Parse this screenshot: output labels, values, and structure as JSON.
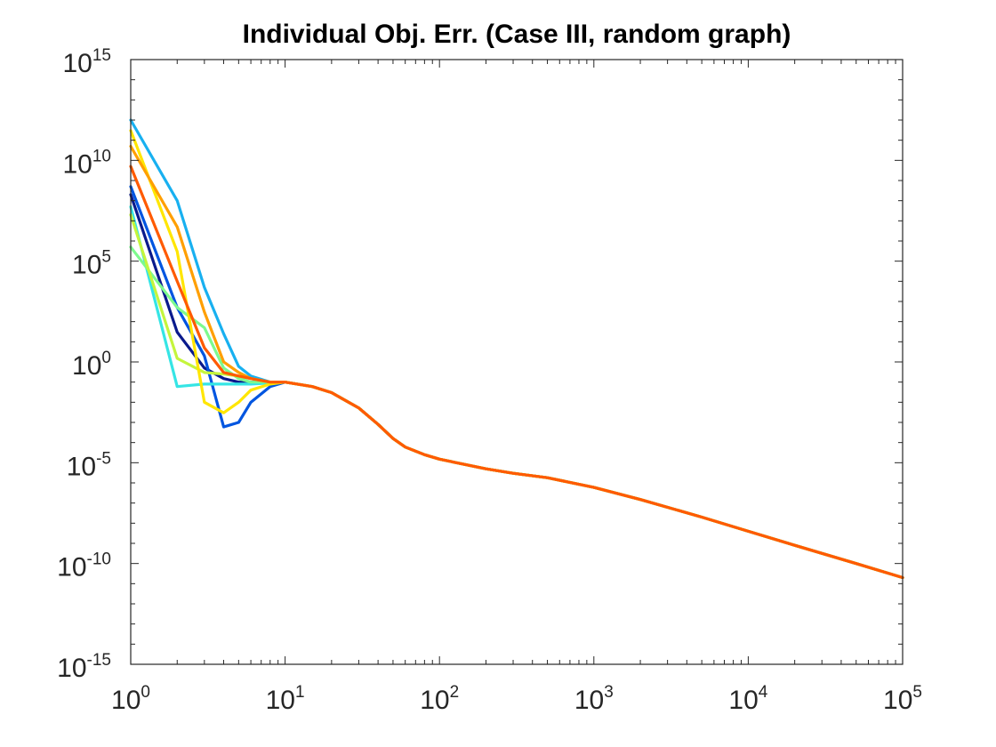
{
  "chart_data": {
    "type": "line",
    "title": "Individual Obj. Err. (Case III, random graph)",
    "xlabel": "",
    "ylabel": "",
    "xscale": "log",
    "yscale": "log",
    "xlim": [
      1,
      100000
    ],
    "ylim": [
      1e-15,
      1000000000000000.0
    ],
    "grid": false,
    "x_ticks": [
      {
        "base": "10",
        "exp": "0"
      },
      {
        "base": "10",
        "exp": "1"
      },
      {
        "base": "10",
        "exp": "2"
      },
      {
        "base": "10",
        "exp": "3"
      },
      {
        "base": "10",
        "exp": "4"
      },
      {
        "base": "10",
        "exp": "5"
      }
    ],
    "y_ticks": [
      {
        "base": "10",
        "exp": "-15"
      },
      {
        "base": "10",
        "exp": "-10"
      },
      {
        "base": "10",
        "exp": "-5"
      },
      {
        "base": "10",
        "exp": "0"
      },
      {
        "base": "10",
        "exp": "5"
      },
      {
        "base": "10",
        "exp": "10"
      },
      {
        "base": "10",
        "exp": "15"
      }
    ],
    "shared_tail": [
      [
        10,
        0.1
      ],
      [
        15,
        0.06
      ],
      [
        20,
        0.03
      ],
      [
        30,
        0.0052
      ],
      [
        40,
        0.0008
      ],
      [
        50,
        0.00016
      ],
      [
        60,
        6e-05
      ],
      [
        80,
        2.5e-05
      ],
      [
        100,
        1.5e-05
      ],
      [
        200,
        5e-06
      ],
      [
        300,
        3e-06
      ],
      [
        500,
        1.8e-06
      ],
      [
        1000,
        6e-07
      ],
      [
        2000,
        1.5e-07
      ],
      [
        5000,
        2e-08
      ],
      [
        10000,
        4e-09
      ],
      [
        20000,
        8e-10
      ],
      [
        50000,
        1e-10
      ],
      [
        100000,
        2e-11
      ]
    ],
    "series": [
      {
        "color": "#0a1a8c",
        "values": [
          [
            1,
            200000000.0
          ],
          [
            2,
            30
          ],
          [
            3,
            0.5
          ],
          [
            4,
            0.15
          ],
          [
            5,
            0.1
          ],
          [
            6,
            0.1
          ],
          [
            8,
            0.1
          ]
        ]
      },
      {
        "color": "#0055e0",
        "values": [
          [
            1,
            500000000.0
          ],
          [
            2,
            500
          ],
          [
            3,
            2
          ],
          [
            4,
            0.0006
          ],
          [
            5,
            0.001
          ],
          [
            6,
            0.01
          ],
          [
            8,
            0.06
          ]
        ]
      },
      {
        "color": "#18b0f0",
        "values": [
          [
            1,
            1000000000000.0
          ],
          [
            2,
            100000000.0
          ],
          [
            3,
            5000
          ],
          [
            4,
            25
          ],
          [
            5,
            0.6
          ],
          [
            6,
            0.2
          ],
          [
            8,
            0.1
          ]
        ]
      },
      {
        "color": "#35e5e5",
        "values": [
          [
            1,
            50000000.0
          ],
          [
            2,
            0.06
          ],
          [
            3,
            0.08
          ],
          [
            4,
            0.08
          ],
          [
            5,
            0.08
          ],
          [
            6,
            0.08
          ],
          [
            8,
            0.09
          ]
        ]
      },
      {
        "color": "#7dfa8e",
        "values": [
          [
            1,
            500000.0
          ],
          [
            2,
            500
          ],
          [
            3,
            50
          ],
          [
            4,
            0.5
          ],
          [
            5,
            0.15
          ],
          [
            6,
            0.1
          ],
          [
            8,
            0.1
          ]
        ]
      },
      {
        "color": "#c5f53c",
        "values": [
          [
            1,
            20000000.0
          ],
          [
            2,
            1.5
          ],
          [
            3,
            0.3
          ],
          [
            4,
            0.25
          ],
          [
            5,
            0.2
          ],
          [
            6,
            0.15
          ],
          [
            8,
            0.1
          ]
        ]
      },
      {
        "color": "#ffe600",
        "values": [
          [
            1,
            300000000000.0
          ],
          [
            2,
            300000.0
          ],
          [
            3,
            0.01
          ],
          [
            4,
            0.003
          ],
          [
            5,
            0.01
          ],
          [
            6,
            0.04
          ],
          [
            8,
            0.08
          ]
        ]
      },
      {
        "color": "#ff9f00",
        "values": [
          [
            1,
            50000000000.0
          ],
          [
            2,
            5000000.0
          ],
          [
            3,
            300
          ],
          [
            4,
            1
          ],
          [
            5,
            0.3
          ],
          [
            6,
            0.15
          ],
          [
            8,
            0.1
          ]
        ]
      },
      {
        "color": "#ff5a00",
        "values": [
          [
            1,
            5000000000.0
          ],
          [
            2,
            10000.0
          ],
          [
            3,
            5
          ],
          [
            4,
            0.3
          ],
          [
            5,
            0.2
          ],
          [
            6,
            0.15
          ],
          [
            8,
            0.1
          ]
        ]
      }
    ]
  }
}
